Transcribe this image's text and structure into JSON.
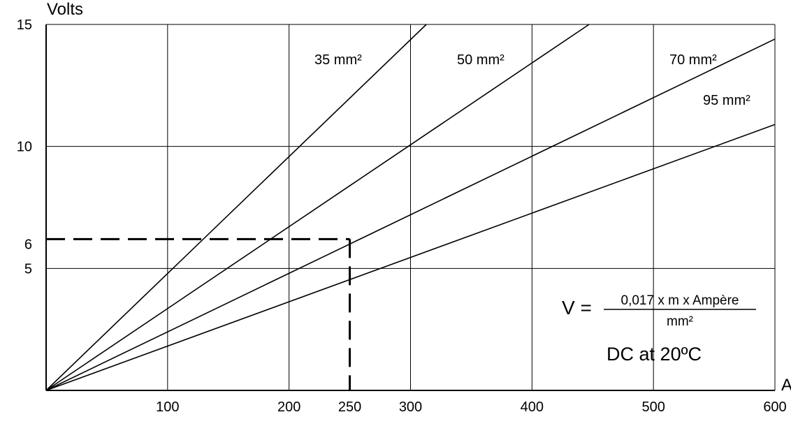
{
  "chart_data": {
    "type": "line",
    "title": "",
    "ylabel": "Volts",
    "xlabel": "A",
    "xlim": [
      0,
      600
    ],
    "ylim": [
      0,
      15
    ],
    "x_ticks": [
      100,
      200,
      250,
      300,
      400,
      500,
      600
    ],
    "x_gridlines": [
      100,
      200,
      300,
      400,
      500,
      600
    ],
    "y_ticks": [
      5,
      6,
      10,
      15
    ],
    "y_gridlines": [
      5,
      10,
      15
    ],
    "grid": true,
    "series": [
      {
        "name": "35 mm²",
        "x": [
          0,
          313
        ],
        "y": [
          0,
          15
        ]
      },
      {
        "name": "50 mm²",
        "x": [
          0,
          447
        ],
        "y": [
          0,
          15
        ]
      },
      {
        "name": "70 mm²",
        "x": [
          0,
          600
        ],
        "y": [
          0,
          14.4
        ]
      },
      {
        "name": "95 mm²",
        "x": [
          0,
          600
        ],
        "y": [
          0,
          10.9
        ]
      }
    ],
    "reference_lines": [
      {
        "x": [
          0,
          250
        ],
        "y": [
          6.2,
          6.2
        ],
        "style": "dashed"
      },
      {
        "x": [
          250,
          250
        ],
        "y": [
          6.2,
          0
        ],
        "style": "dashed"
      }
    ],
    "annotations": {
      "formula_lhs": "V =",
      "formula_numerator": "0,017 x m x Ampère",
      "formula_denominator": "mm²",
      "condition": "DC at 20ºC"
    }
  }
}
